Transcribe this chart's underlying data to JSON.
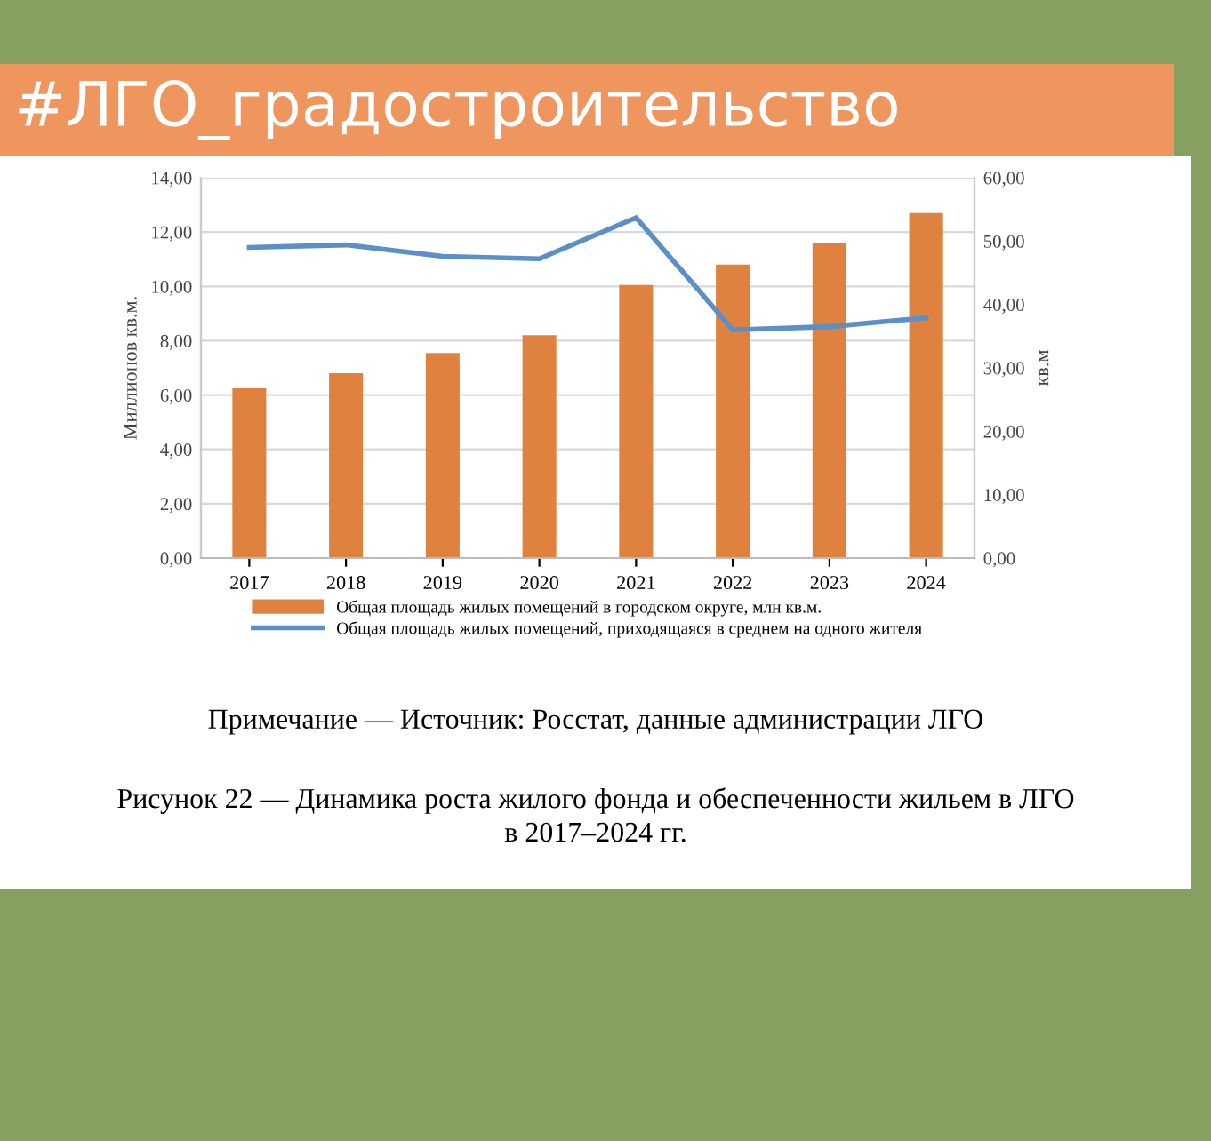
{
  "chart_data": {
    "type": "bar",
    "title": "#ЛГО_градостроительство",
    "categories": [
      "2017",
      "2018",
      "2019",
      "2020",
      "2021",
      "2022",
      "2023",
      "2024"
    ],
    "series": [
      {
        "name": "Общая площадь жилых помещений в городском округе, млн кв.м.",
        "color": "#e0823f",
        "values": [
          6.25,
          6.8,
          7.55,
          8.2,
          10.05,
          10.8,
          11.6,
          12.7
        ]
      },
      {
        "name": "Общая площадь жилых помещений, приходящаяся в среднем на одного жителя",
        "type": "line",
        "axis": "y2",
        "color": "#5b8fc7",
        "values": [
          49.0,
          49.4,
          47.6,
          47.2,
          53.7,
          36.0,
          36.5,
          37.9
        ]
      }
    ],
    "ylabel": "Миллионов кв.м.",
    "y2label": "кв.м",
    "ylim": [
      0,
      14
    ],
    "yticks": [
      {
        "value": 0,
        "label": "0,00"
      },
      {
        "value": 2,
        "label": "2,00"
      },
      {
        "value": 4,
        "label": "4,00"
      },
      {
        "value": 6,
        "label": "6,00"
      },
      {
        "value": 8,
        "label": "8,00"
      },
      {
        "value": 10,
        "label": "10,00"
      },
      {
        "value": 12,
        "label": "12,00"
      },
      {
        "value": 14,
        "label": "14,00"
      }
    ],
    "y2lim": [
      0,
      60
    ],
    "y2ticks": [
      {
        "value": 0,
        "label": "0,00"
      },
      {
        "value": 10,
        "label": "10,00"
      },
      {
        "value": 20,
        "label": "20,00"
      },
      {
        "value": 30,
        "label": "30,00"
      },
      {
        "value": 40,
        "label": "40,00"
      },
      {
        "value": 50,
        "label": "50,00"
      },
      {
        "value": 60,
        "label": "60,00"
      }
    ],
    "grid": "y",
    "legend": "bottom",
    "marker": "none",
    "line_style": "solid",
    "annotations": [
      "Примечание — Источник: Росстат, данные администрации ЛГО",
      "Рисунок 22 — Динамика роста жилого фонда и обеспеченности жильем в ЛГО\nв 2017–2024 гг."
    ]
  }
}
